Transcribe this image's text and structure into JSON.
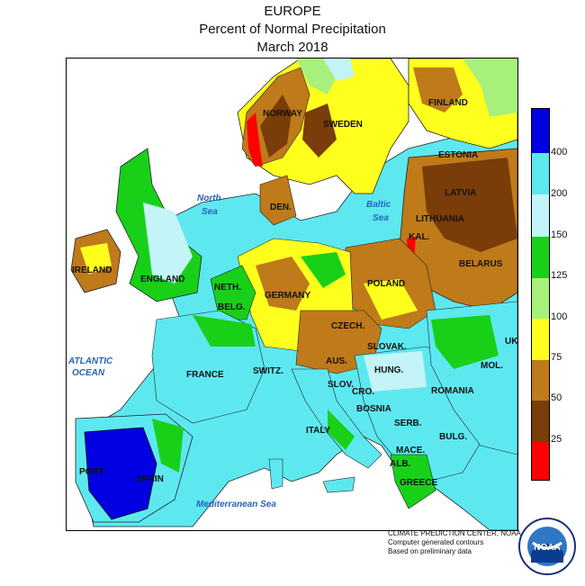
{
  "title": {
    "line1": "EUROPE",
    "line2": "Percent of Normal Precipitation",
    "line3": "March 2018"
  },
  "map": {
    "countries": [
      "NORWAY",
      "SWEDEN",
      "FINLAND",
      "ESTONIA",
      "LATVIA",
      "LITHUANIA",
      "KAL.",
      "BELARUS",
      "DEN.",
      "POLAND",
      "GERMANY",
      "NETH.",
      "BELG.",
      "ENGLAND",
      "IRELAND",
      "FRANCE",
      "CZECH.",
      "SLOVAK.",
      "AUS.",
      "SWITZ.",
      "SLOV.",
      "HUNG.",
      "CRO.",
      "BOSNIA",
      "SERB.",
      "ROMANIA",
      "MOL.",
      "UK.",
      "BULG.",
      "MACE.",
      "ALB.",
      "GREECE",
      "ITALY",
      "SPAIN",
      "PORT."
    ],
    "seas": [
      "North",
      "Sea",
      "Baltic",
      "Sea",
      "ATLANTIC",
      "OCEAN",
      "Mediterranean Sea"
    ]
  },
  "legend": {
    "ticks": [
      "400",
      "200",
      "150",
      "125",
      "100",
      "75",
      "50",
      "25"
    ],
    "colors": [
      "#0000e0",
      "#5de8f0",
      "#c2f4f8",
      "#19d019",
      "#a8f07c",
      "#ffff1e",
      "#bf7a1a",
      "#7a3c08",
      "#ff0000"
    ]
  },
  "footer": {
    "line1": "CLIMATE PREDICTION CENTER, NOAA",
    "line2": "Computer generated contours",
    "line3": "Based on preliminary data"
  },
  "logo": {
    "text": "NOAA"
  }
}
